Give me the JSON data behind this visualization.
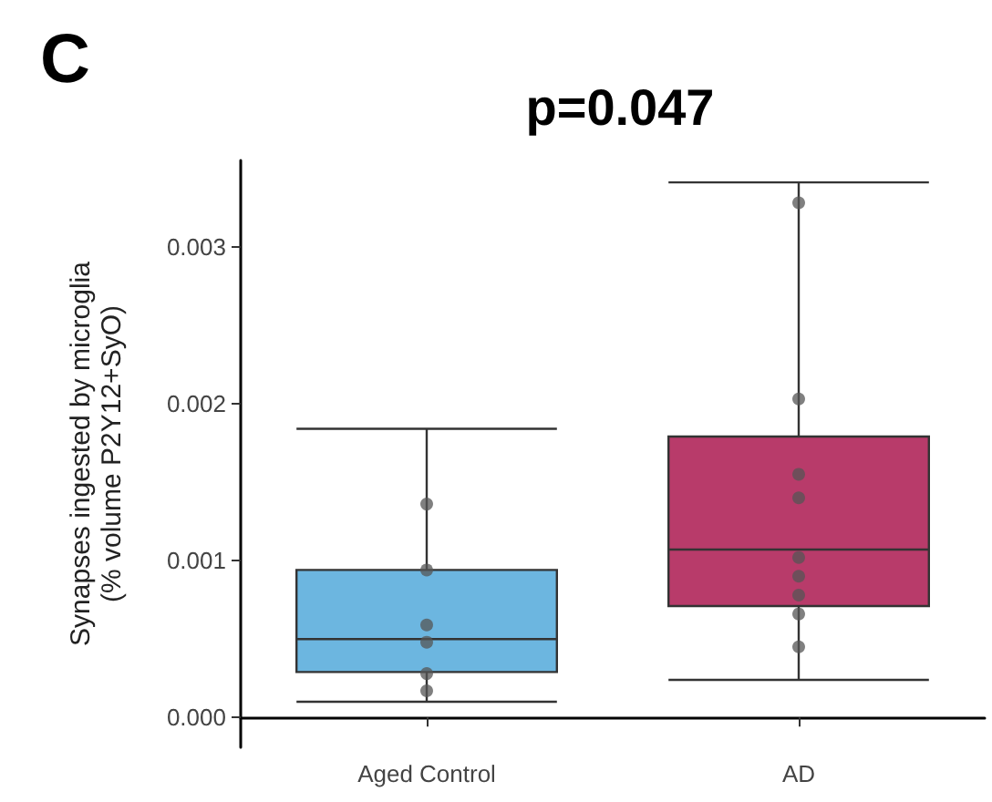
{
  "chart_data": {
    "type": "box",
    "title": "p=0.047",
    "ylabel": "Synapses ingested by microglia\n(% volume P2Y12+SyO)",
    "annotations": [
      "C"
    ],
    "categories": [
      "Aged Control",
      "AD"
    ],
    "ylim": [
      -0.00019,
      0.00355
    ],
    "yticks": [
      {
        "value": 0,
        "label": "0.000"
      },
      {
        "value": 0.001,
        "label": "0.001"
      },
      {
        "value": 0.002,
        "label": "0.002"
      },
      {
        "value": 0.003,
        "label": "0.003"
      }
    ],
    "grid": false,
    "series": [
      {
        "colors": [
          "#6cb6e0",
          "#b83b6a"
        ],
        "boxes": [
          {
            "low": 0.0001,
            "q1": 0.00029,
            "median": 0.0005,
            "q3": 0.00094,
            "high": 0.00184
          },
          {
            "low": 0.00024,
            "q1": 0.00071,
            "median": 0.00107,
            "q3": 0.00179,
            "high": 0.00341
          }
        ]
      },
      {
        "type": "scatter",
        "color": "#555555",
        "marker": "circle",
        "x": [
          "Aged Control",
          "Aged Control",
          "Aged Control",
          "Aged Control",
          "Aged Control",
          "Aged Control",
          "AD",
          "AD",
          "AD",
          "AD",
          "AD",
          "AD",
          "AD",
          "AD",
          "AD"
        ],
        "values": [
          0.00136,
          0.00094,
          0.00059,
          0.00048,
          0.00028,
          0.00017,
          0.00328,
          0.00203,
          0.00155,
          0.0014,
          0.00102,
          0.0009,
          0.00078,
          0.00066,
          0.00045
        ]
      }
    ]
  }
}
